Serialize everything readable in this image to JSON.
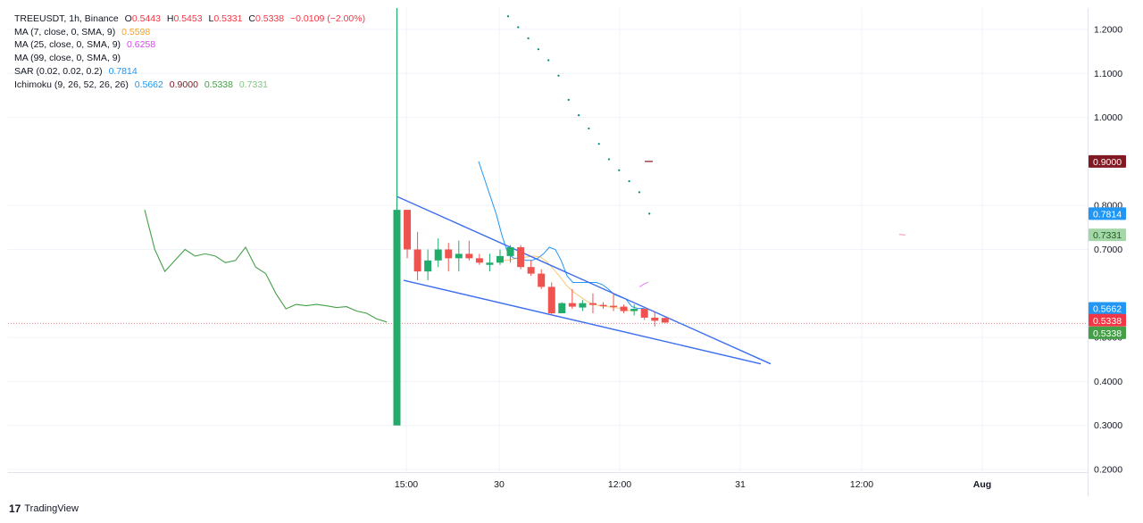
{
  "legend": {
    "symbol": "TREEUSDT, 1h, Binance",
    "ohlc": {
      "o_label": "O",
      "o": "0.5443",
      "h_label": "H",
      "h": "0.5453",
      "l_label": "L",
      "l": "0.5331",
      "c_label": "C",
      "c": "0.5338",
      "change": "−0.0109 (−2.00%)"
    },
    "indicators": [
      {
        "label": "MA (7, close, 0, SMA, 9)",
        "values": [
          "0.5598"
        ],
        "colors": [
          "#f7a21b"
        ]
      },
      {
        "label": "MA (25, close, 0, SMA, 9)",
        "values": [
          "0.6258"
        ],
        "colors": [
          "#e040fb"
        ]
      },
      {
        "label": "MA (99, close, 0, SMA, 9)",
        "values": [],
        "colors": []
      },
      {
        "label": "SAR (0.02, 0.02, 0.2)",
        "values": [
          "0.7814"
        ],
        "colors": [
          "#2196f3"
        ]
      },
      {
        "label": "Ichimoku (9, 26, 52, 26, 26)",
        "values": [
          "0.5662",
          "0.9000",
          "0.5338",
          "0.7331"
        ],
        "colors": [
          "#2196f3",
          "#801922",
          "#43a047",
          "#81c784"
        ]
      }
    ]
  },
  "footer": {
    "brand": "TradingView",
    "logo_text": "17"
  },
  "colors": {
    "up": "#26a69a",
    "up_body": "#22ab6a",
    "down": "#ef5350",
    "lagging": "#43a047",
    "conversion": "#2196f3",
    "sar": "#00897b",
    "ma7": "#f7a21b",
    "ma25": "#e040fb",
    "wedge": "#3d6ef0",
    "last_price_line": "#f23645",
    "grid": "#f0f3fa"
  },
  "chart_data": {
    "type": "candlestick",
    "symbol": "TREEUSDT",
    "interval": "1h",
    "exchange": "Binance",
    "y_axis": {
      "ticks": [
        "1.2000",
        "1.1000",
        "1.0000",
        "0.8000",
        "0.7000",
        "0.5000",
        "0.4000",
        "0.3000",
        "0.2000"
      ],
      "range": [
        0.18,
        1.26
      ]
    },
    "x_axis": {
      "ticks": [
        "15:00",
        "30",
        "12:00",
        "31",
        "12:00",
        "Aug"
      ]
    },
    "price_labels": [
      {
        "value": "0.9000",
        "price": 0.9,
        "color": "#801922",
        "name": "ichimoku-lead2"
      },
      {
        "value": "0.7814",
        "price": 0.7814,
        "color": "#2196f3",
        "name": "sar"
      },
      {
        "value": "0.7331",
        "price": 0.7331,
        "color": "#a5d6a7",
        "name": "ichimoku-lead1",
        "text_color": "#1b5e20"
      },
      {
        "value": "0.5662",
        "price": 0.5662,
        "color": "#2196f3",
        "name": "ichimoku-conversion"
      },
      {
        "value": "0.5338",
        "price": 0.5392,
        "color": "#f23645",
        "name": "last-price"
      },
      {
        "value": "0.5338",
        "price": 0.5105,
        "color": "#43a047",
        "name": "ichimoku-lagging"
      }
    ],
    "last_price": 0.5338,
    "candles": [
      {
        "o": 0.3,
        "h": 1.3,
        "l": 0.3,
        "c": 0.79
      },
      {
        "o": 0.79,
        "h": 0.79,
        "l": 0.68,
        "c": 0.7
      },
      {
        "o": 0.7,
        "h": 0.74,
        "l": 0.63,
        "c": 0.65
      },
      {
        "o": 0.65,
        "h": 0.7,
        "l": 0.63,
        "c": 0.675
      },
      {
        "o": 0.675,
        "h": 0.725,
        "l": 0.66,
        "c": 0.7
      },
      {
        "o": 0.7,
        "h": 0.715,
        "l": 0.65,
        "c": 0.68
      },
      {
        "o": 0.68,
        "h": 0.72,
        "l": 0.65,
        "c": 0.69
      },
      {
        "o": 0.69,
        "h": 0.72,
        "l": 0.675,
        "c": 0.68
      },
      {
        "o": 0.68,
        "h": 0.69,
        "l": 0.665,
        "c": 0.67
      },
      {
        "o": 0.665,
        "h": 0.69,
        "l": 0.65,
        "c": 0.67
      },
      {
        "o": 0.67,
        "h": 0.7,
        "l": 0.665,
        "c": 0.685
      },
      {
        "o": 0.685,
        "h": 0.71,
        "l": 0.67,
        "c": 0.705
      },
      {
        "o": 0.705,
        "h": 0.71,
        "l": 0.655,
        "c": 0.66
      },
      {
        "o": 0.66,
        "h": 0.675,
        "l": 0.64,
        "c": 0.645
      },
      {
        "o": 0.645,
        "h": 0.655,
        "l": 0.61,
        "c": 0.615
      },
      {
        "o": 0.615,
        "h": 0.625,
        "l": 0.55,
        "c": 0.555
      },
      {
        "o": 0.555,
        "h": 0.58,
        "l": 0.555,
        "c": 0.578
      },
      {
        "o": 0.578,
        "h": 0.61,
        "l": 0.565,
        "c": 0.57
      },
      {
        "o": 0.568,
        "h": 0.585,
        "l": 0.56,
        "c": 0.578
      },
      {
        "o": 0.578,
        "h": 0.6,
        "l": 0.555,
        "c": 0.574
      },
      {
        "o": 0.574,
        "h": 0.58,
        "l": 0.565,
        "c": 0.572
      },
      {
        "o": 0.572,
        "h": 0.6,
        "l": 0.56,
        "c": 0.57
      },
      {
        "o": 0.57,
        "h": 0.575,
        "l": 0.555,
        "c": 0.56
      },
      {
        "o": 0.56,
        "h": 0.575,
        "l": 0.55,
        "c": 0.565
      },
      {
        "o": 0.565,
        "h": 0.57,
        "l": 0.54,
        "c": 0.545
      },
      {
        "o": 0.545,
        "h": 0.56,
        "l": 0.525,
        "c": 0.538
      },
      {
        "o": 0.5443,
        "h": 0.5453,
        "l": 0.5331,
        "c": 0.5338
      }
    ],
    "lagging_span": [
      0.79,
      0.7,
      0.65,
      0.675,
      0.7,
      0.685,
      0.69,
      0.685,
      0.67,
      0.675,
      0.705,
      0.66,
      0.645,
      0.6,
      0.565,
      0.575,
      0.572,
      0.575,
      0.572,
      0.568,
      0.57,
      0.56,
      0.555,
      0.542,
      0.535
    ],
    "conversion_line": [
      0.9,
      0.86,
      0.82,
      0.78,
      0.73,
      0.69,
      0.68,
      0.68,
      0.675,
      0.675,
      0.68,
      0.69,
      0.705,
      0.7,
      0.675,
      0.64,
      0.625,
      0.625,
      0.625,
      0.625,
      0.625,
      0.62,
      0.61,
      0.598,
      0.592,
      0.587,
      0.57,
      0.566,
      0.5662
    ],
    "ma7": [
      0.675,
      0.675,
      0.678,
      0.68,
      0.683,
      0.685,
      0.683,
      0.672,
      0.655,
      0.637,
      0.617,
      0.603,
      0.592,
      0.582,
      0.575,
      0.572,
      0.57,
      0.568,
      0.566,
      0.562,
      0.5598
    ],
    "ma25": [
      0.615,
      0.621,
      0.6258
    ],
    "sar": [
      1.23,
      1.205,
      1.18,
      1.155,
      1.13,
      1.095,
      1.04,
      1.005,
      0.975,
      0.94,
      0.905,
      0.88,
      0.855,
      0.83,
      0.7814
    ],
    "ichimoku_lead2": [
      0.9,
      0.9
    ],
    "ichimoku_lead1": [
      0.734,
      0.733
    ],
    "wedge_upper": [
      0.82,
      0.44
    ],
    "wedge_lower": [
      0.63,
      0.44
    ]
  }
}
